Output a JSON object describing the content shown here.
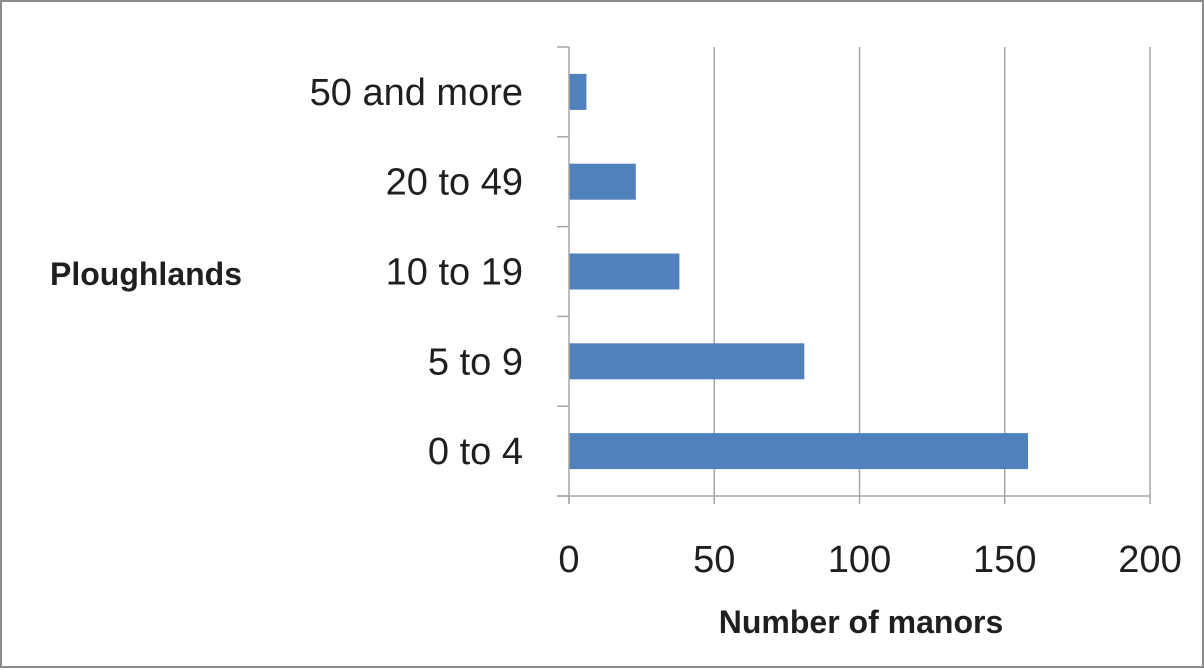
{
  "chart_data": {
    "type": "bar",
    "orientation": "horizontal",
    "categories": [
      "0 to 4",
      "5 to 9",
      "10 to 19",
      "20 to 49",
      "50 and more"
    ],
    "values": [
      158,
      81,
      38,
      23,
      6
    ],
    "xlabel": "Number of manors",
    "ylabel": "Ploughlands",
    "xlim": [
      0,
      200
    ],
    "xticks": [
      "0",
      "50",
      "100",
      "150",
      "200"
    ],
    "grid": "vertical",
    "bar_color": "#4f81bd"
  }
}
